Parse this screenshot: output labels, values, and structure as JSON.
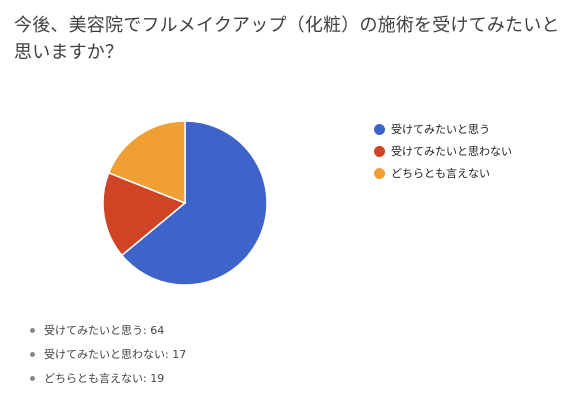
{
  "chart_data": {
    "type": "pie",
    "title": "今後、美容院でフルメイクアップ（化粧）の施術を受けてみたいと思いますか？",
    "categories": [
      "受けてみたいと思う",
      "受けてみたいと思わない",
      "どちらとも言えない"
    ],
    "values": [
      64,
      17,
      19
    ],
    "colors": [
      "#3e63c9",
      "#cf4424",
      "#f0a033"
    ],
    "legend_position": "right",
    "summary": [
      "受けてみたいと思う: 64",
      "受けてみたいと思わない: 17",
      "どちらとも言えない: 19"
    ]
  }
}
